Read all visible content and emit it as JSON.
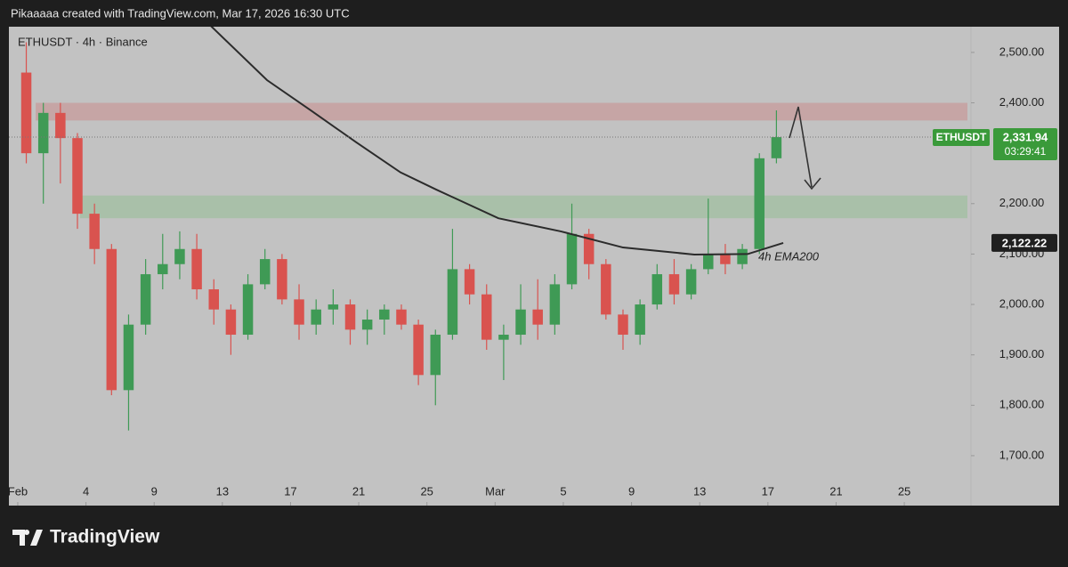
{
  "header": {
    "caption": "Pikaaaaa created with TradingView.com, Mar 17, 2026 16:30 UTC"
  },
  "footer": {
    "logo": "TradingView"
  },
  "chart_data": {
    "type": "candlestick",
    "title": "ETHUSDT · 4h · Binance",
    "open": [
      2460,
      2300,
      2380,
      2330,
      2180,
      2110,
      1830,
      1960,
      2060,
      2080,
      2110,
      2030,
      1990,
      1940,
      2040,
      2090,
      2010,
      1960,
      1990,
      2000,
      1950,
      1970,
      1990,
      1960,
      1860,
      1940,
      2070,
      2020,
      1930,
      1940,
      1990,
      1960,
      2040,
      2140,
      2080,
      1980,
      1940,
      2000,
      2060,
      2020,
      2070,
      2100,
      2080,
      2110,
      2290
    ],
    "high": [
      2520,
      2400,
      2400,
      2340,
      2200,
      2120,
      1980,
      2090,
      2140,
      2145,
      2140,
      2050,
      2000,
      2060,
      2110,
      2100,
      2040,
      2010,
      2030,
      2010,
      1990,
      2000,
      2000,
      1970,
      1950,
      2150,
      2080,
      2040,
      1960,
      2040,
      2050,
      2060,
      2200,
      2150,
      2090,
      1990,
      2010,
      2080,
      2090,
      2080,
      2210,
      2120,
      2120,
      2300,
      2385
    ],
    "low": [
      2280,
      2200,
      2240,
      2150,
      2080,
      1820,
      1750,
      1940,
      2030,
      2050,
      2010,
      1960,
      1900,
      1930,
      2030,
      2000,
      1930,
      1940,
      1960,
      1920,
      1920,
      1940,
      1950,
      1840,
      1800,
      1930,
      2000,
      1910,
      1850,
      1920,
      1930,
      1940,
      2030,
      2050,
      1970,
      1910,
      1920,
      1990,
      2000,
      2010,
      2060,
      2060,
      2070,
      2100,
      2280
    ],
    "close": [
      2300,
      2380,
      2330,
      2180,
      2110,
      1830,
      1960,
      2060,
      2080,
      2110,
      2030,
      1990,
      1940,
      2040,
      2090,
      2010,
      1960,
      1990,
      2000,
      1950,
      1970,
      1990,
      1960,
      1860,
      1940,
      2070,
      2020,
      1930,
      1940,
      1990,
      1960,
      2040,
      2140,
      2080,
      1980,
      1940,
      2000,
      2060,
      2020,
      2070,
      2100,
      2080,
      2110,
      2290,
      2331.94
    ],
    "up_color": "#3f9a55",
    "down_color": "#d9534f",
    "ema": {
      "name": "4h EMA200",
      "color": "#2b2b2b",
      "x": [
        11.22,
        14.62,
        17.23,
        19.84,
        22.45,
        24.54,
        28.19,
        31.85,
        35.5,
        39.68,
        42.81,
        44.9
      ],
      "values": [
        2556,
        2445,
        2384,
        2322,
        2262,
        2228,
        2171,
        2145,
        2113,
        2099,
        2100,
        2122
      ]
    },
    "zones": [
      {
        "low": 2365,
        "high": 2400,
        "x_start": 1.05,
        "color": "rgba(205,130,130,0.45)"
      },
      {
        "low": 2171,
        "high": 2216,
        "x_start": 3.65,
        "color": "rgba(140,190,140,0.45)"
      }
    ],
    "last_price": {
      "value": 2331.94,
      "label": "2,331.94"
    },
    "symbol": "ETHUSDT",
    "countdown": "03:29:41",
    "ema_tag": {
      "value": 2122.22,
      "label": "2,122.22"
    },
    "xlim": [
      -0.52,
      55.86
    ],
    "ylim": [
      1601,
      2551
    ],
    "yticks": [
      {
        "value": 1700,
        "label": "1,700.00"
      },
      {
        "value": 1800,
        "label": "1,800.00"
      },
      {
        "value": 1900,
        "label": "1,900.00"
      },
      {
        "value": 2000,
        "label": "2,000.00"
      },
      {
        "value": 2100,
        "label": "2,100.00"
      },
      {
        "value": 2200,
        "label": "2,200.00"
      },
      {
        "value": 2400,
        "label": "2,400.00"
      },
      {
        "value": 2500,
        "label": "2,500.00"
      }
    ],
    "xticks": [
      {
        "value": 0,
        "label": "Feb"
      },
      4,
      {
        "value": 8,
        "label": "9"
      },
      {
        "value": 12,
        "label": "13"
      },
      {
        "value": 16,
        "label": "17"
      },
      {
        "value": 20,
        "label": "21"
      },
      {
        "value": 24,
        "label": "25"
      },
      {
        "value": 28,
        "label": "Mar"
      },
      {
        "value": 32,
        "label": "5"
      },
      {
        "value": 36,
        "label": "9"
      },
      {
        "value": 40,
        "label": "13"
      },
      {
        "value": 44,
        "label": "17"
      },
      {
        "value": 48,
        "label": "21"
      },
      {
        "value": 52,
        "label": "25"
      }
    ],
    "grid": false
  }
}
